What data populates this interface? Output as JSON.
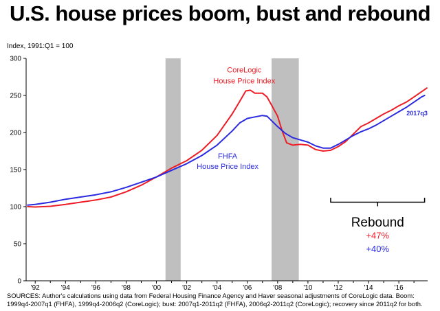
{
  "chart_data": {
    "type": "line",
    "title": "U.S. house prices boom, bust and rebound",
    "ylabel": "Index, 1991:Q1 = 100",
    "xlabel": "",
    "ylim": [
      0,
      300
    ],
    "yticks": [
      0,
      50,
      100,
      150,
      200,
      250,
      300
    ],
    "xlim": [
      1991.4,
      2017.9
    ],
    "xticks": [
      {
        "label": "'92",
        "x": 1992
      },
      {
        "label": "'94",
        "x": 1994
      },
      {
        "label": "'96",
        "x": 1996
      },
      {
        "label": "'98",
        "x": 1998
      },
      {
        "label": "'00",
        "x": 2000
      },
      {
        "label": "'02",
        "x": 2002
      },
      {
        "label": "'04",
        "x": 2004
      },
      {
        "label": "'06",
        "x": 2006
      },
      {
        "label": "'08",
        "x": 2008
      },
      {
        "label": "'10",
        "x": 2010
      },
      {
        "label": "'12",
        "x": 2012
      },
      {
        "label": "'14",
        "x": 2014
      },
      {
        "label": "'16",
        "x": 2016
      }
    ],
    "shaded_periods": [
      {
        "name": "boom-end",
        "start": 2000.6,
        "end": 2001.6
      },
      {
        "name": "bust",
        "start": 2007.6,
        "end": 2009.4
      }
    ],
    "series": [
      {
        "name": "CoreLogic House Price Index",
        "label_line1": "CoreLogic",
        "label_line2": "House Price Index",
        "color": "#ee1c25",
        "points": [
          [
            1991.5,
            100
          ],
          [
            1992,
            99.5
          ],
          [
            1993,
            100.5
          ],
          [
            1994,
            103
          ],
          [
            1995,
            106
          ],
          [
            1996,
            109
          ],
          [
            1997,
            113
          ],
          [
            1998,
            120
          ],
          [
            1999,
            129
          ],
          [
            2000,
            140
          ],
          [
            2001,
            152
          ],
          [
            2002,
            162
          ],
          [
            2003,
            176
          ],
          [
            2004,
            196
          ],
          [
            2005,
            225
          ],
          [
            2005.5,
            242
          ],
          [
            2005.9,
            256
          ],
          [
            2006.2,
            257
          ],
          [
            2006.5,
            253
          ],
          [
            2007,
            253
          ],
          [
            2007.3,
            248
          ],
          [
            2007.6,
            237
          ],
          [
            2008,
            222
          ],
          [
            2008.3,
            202
          ],
          [
            2008.6,
            186
          ],
          [
            2009,
            183
          ],
          [
            2009.5,
            184
          ],
          [
            2010,
            183
          ],
          [
            2010.5,
            177
          ],
          [
            2011,
            175
          ],
          [
            2011.5,
            176
          ],
          [
            2012,
            181
          ],
          [
            2012.5,
            188
          ],
          [
            2013,
            198
          ],
          [
            2013.5,
            208
          ],
          [
            2014,
            213
          ],
          [
            2014.5,
            219
          ],
          [
            2015,
            225
          ],
          [
            2015.5,
            230
          ],
          [
            2016,
            236
          ],
          [
            2016.5,
            241
          ],
          [
            2017,
            248
          ],
          [
            2017.5,
            255
          ],
          [
            2017.85,
            260
          ]
        ]
      },
      {
        "name": "FHFA House Price Index",
        "label_line1": "FHFA",
        "label_line2": "House Price Index",
        "color": "#2a2ae0",
        "end_label": "2017q3",
        "points": [
          [
            1991.5,
            102
          ],
          [
            1992,
            103
          ],
          [
            1993,
            106
          ],
          [
            1994,
            110
          ],
          [
            1995,
            113
          ],
          [
            1996,
            116
          ],
          [
            1997,
            120
          ],
          [
            1998,
            126
          ],
          [
            1999,
            133
          ],
          [
            2000,
            140
          ],
          [
            2001,
            149
          ],
          [
            2002,
            158
          ],
          [
            2003,
            169
          ],
          [
            2004,
            183
          ],
          [
            2005,
            202
          ],
          [
            2005.5,
            213
          ],
          [
            2006,
            219
          ],
          [
            2006.5,
            221
          ],
          [
            2007,
            223
          ],
          [
            2007.3,
            222
          ],
          [
            2008,
            208
          ],
          [
            2008.5,
            199
          ],
          [
            2009,
            193
          ],
          [
            2009.5,
            190
          ],
          [
            2010,
            187
          ],
          [
            2010.5,
            182
          ],
          [
            2011,
            179
          ],
          [
            2011.5,
            179
          ],
          [
            2012,
            184
          ],
          [
            2012.5,
            190
          ],
          [
            2013,
            196
          ],
          [
            2013.5,
            201
          ],
          [
            2014,
            205
          ],
          [
            2014.5,
            210
          ],
          [
            2015,
            216
          ],
          [
            2015.5,
            222
          ],
          [
            2016,
            228
          ],
          [
            2016.5,
            234
          ],
          [
            2017,
            241
          ],
          [
            2017.5,
            248
          ],
          [
            2017.7,
            250
          ]
        ]
      }
    ],
    "annotation": {
      "title": "Rebound",
      "values": [
        {
          "text": "+47%",
          "color": "#ee1c25"
        },
        {
          "text": "+40%",
          "color": "#2a2ae0"
        }
      ],
      "bracket_start": 2011.5,
      "bracket_end": 2017.7
    }
  },
  "sources": "SOURCES: Author's calculations using data from Federal Housing Finance Agency and Haver seasonal adjustments of CoreLogic data. Boom: 1999q4-2007q1 (FHFA), 1999q4-2006q2 (CoreLogic); bust: 2007q1-2011q2 (FHFA), 2006q2-2011q2 (CoreLogic); recovery since 2011q2 for both."
}
